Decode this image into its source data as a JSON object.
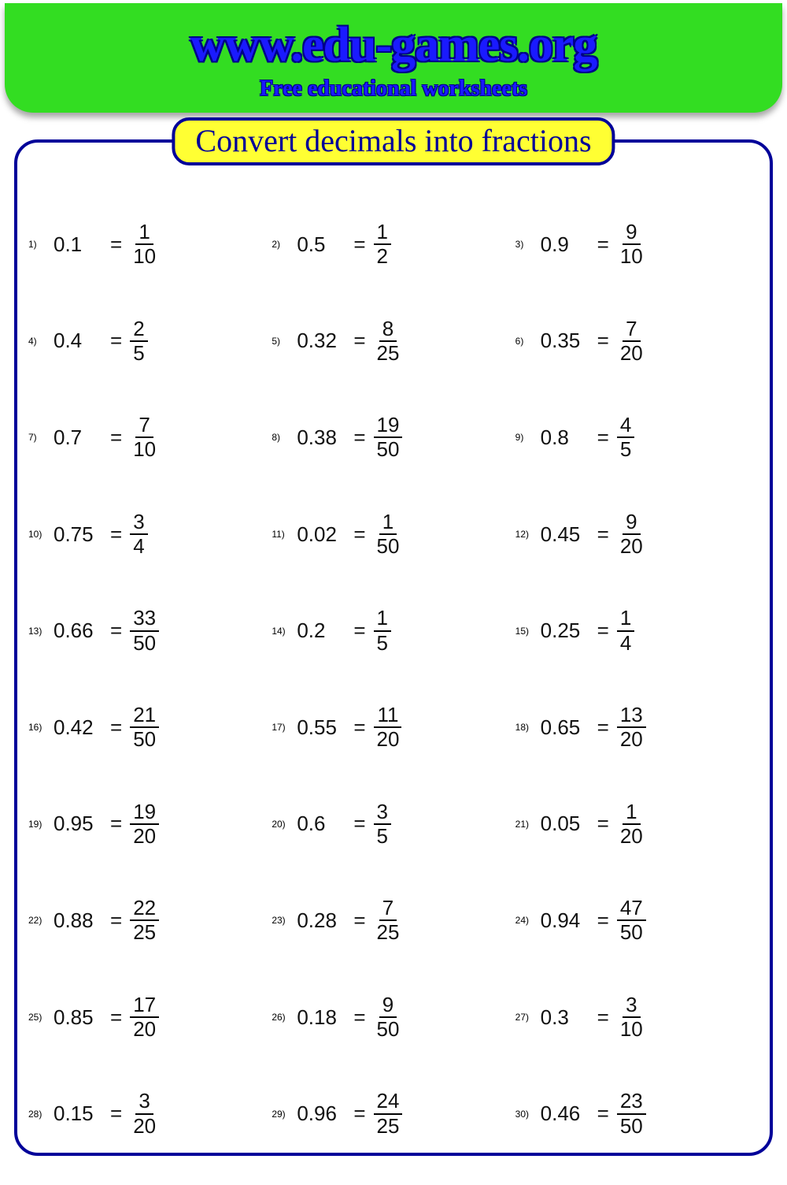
{
  "header": {
    "site_title": "www.edu-games.org",
    "sub_title": "Free educational worksheets",
    "bg_color": "#33dd22",
    "text_color": "#1a1aff"
  },
  "panel": {
    "title": "Convert decimals into fractions",
    "title_bg": "#ffff33",
    "border_color": "#000099"
  },
  "problems": [
    {
      "n": "1)",
      "decimal": "0.1",
      "num": "1",
      "den": "10"
    },
    {
      "n": "2)",
      "decimal": "0.5",
      "num": "1",
      "den": "2"
    },
    {
      "n": "3)",
      "decimal": "0.9",
      "num": "9",
      "den": "10"
    },
    {
      "n": "4)",
      "decimal": "0.4",
      "num": "2",
      "den": "5"
    },
    {
      "n": "5)",
      "decimal": "0.32",
      "num": "8",
      "den": "25"
    },
    {
      "n": "6)",
      "decimal": "0.35",
      "num": "7",
      "den": "20"
    },
    {
      "n": "7)",
      "decimal": "0.7",
      "num": "7",
      "den": "10"
    },
    {
      "n": "8)",
      "decimal": "0.38",
      "num": "19",
      "den": "50"
    },
    {
      "n": "9)",
      "decimal": "0.8",
      "num": "4",
      "den": "5"
    },
    {
      "n": "10)",
      "decimal": "0.75",
      "num": "3",
      "den": "4"
    },
    {
      "n": "11)",
      "decimal": "0.02",
      "num": "1",
      "den": "50"
    },
    {
      "n": "12)",
      "decimal": "0.45",
      "num": "9",
      "den": "20"
    },
    {
      "n": "13)",
      "decimal": "0.66",
      "num": "33",
      "den": "50"
    },
    {
      "n": "14)",
      "decimal": "0.2",
      "num": "1",
      "den": "5"
    },
    {
      "n": "15)",
      "decimal": "0.25",
      "num": "1",
      "den": "4"
    },
    {
      "n": "16)",
      "decimal": "0.42",
      "num": "21",
      "den": "50"
    },
    {
      "n": "17)",
      "decimal": "0.55",
      "num": "11",
      "den": "20"
    },
    {
      "n": "18)",
      "decimal": "0.65",
      "num": "13",
      "den": "20"
    },
    {
      "n": "19)",
      "decimal": "0.95",
      "num": "19",
      "den": "20"
    },
    {
      "n": "20)",
      "decimal": "0.6",
      "num": "3",
      "den": "5"
    },
    {
      "n": "21)",
      "decimal": "0.05",
      "num": "1",
      "den": "20"
    },
    {
      "n": "22)",
      "decimal": "0.88",
      "num": "22",
      "den": "25"
    },
    {
      "n": "23)",
      "decimal": "0.28",
      "num": "7",
      "den": "25"
    },
    {
      "n": "24)",
      "decimal": "0.94",
      "num": "47",
      "den": "50"
    },
    {
      "n": "25)",
      "decimal": "0.85",
      "num": "17",
      "den": "20"
    },
    {
      "n": "26)",
      "decimal": "0.18",
      "num": "9",
      "den": "50"
    },
    {
      "n": "27)",
      "decimal": "0.3",
      "num": "3",
      "den": "10"
    },
    {
      "n": "28)",
      "decimal": "0.15",
      "num": "3",
      "den": "20"
    },
    {
      "n": "29)",
      "decimal": "0.96",
      "num": "24",
      "den": "25"
    },
    {
      "n": "30)",
      "decimal": "0.46",
      "num": "23",
      "den": "50"
    }
  ],
  "equals_label": "="
}
